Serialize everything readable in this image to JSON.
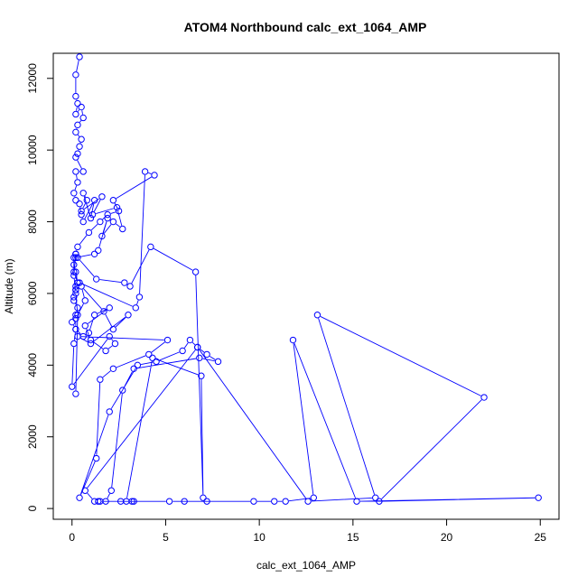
{
  "chart_data": {
    "type": "line",
    "title": "ATOM4 Northbound calc_ext_1064_AMP",
    "xlabel": "calc_ext_1064_AMP",
    "ylabel": "Altitude (m)",
    "xlim": [
      -1.0,
      26.0
    ],
    "ylim": [
      -300,
      12700
    ],
    "xticks": [
      0,
      5,
      10,
      15,
      20,
      25
    ],
    "yticks": [
      0,
      2000,
      4000,
      6000,
      8000,
      10000,
      12000
    ],
    "xtick_labels": [
      "0",
      "5",
      "10",
      "15",
      "20",
      "25"
    ],
    "ytick_labels": [
      "0",
      "2000",
      "4000",
      "6000",
      "8000",
      "10000",
      "12000"
    ],
    "grid": false,
    "series": [
      {
        "color": "#0000ff",
        "markers": "open-circle",
        "x": [
          0.4,
          0.2,
          0.2,
          0.3,
          0.2,
          0.5,
          0.6,
          0.3,
          0.2,
          0.5,
          0.4,
          0.3,
          0.2,
          0.6,
          0.2,
          0.3,
          0.1,
          0.2,
          0.4,
          0.5,
          0.6,
          1.2,
          1.0,
          0.6,
          0.8,
          0.5,
          1.6,
          1.1,
          2.4,
          2.7,
          2.2,
          1.6,
          1.9,
          1.4,
          1.2,
          0.2,
          0.1,
          0.2,
          0.3,
          0.2,
          0.1,
          0.1,
          0.3,
          0.2,
          0.0,
          0.2,
          0.6,
          0.9,
          1.2,
          2.0,
          0.7,
          1.0,
          1.8,
          2.3,
          2.0,
          0.0,
          0.1,
          0.2,
          0.2,
          0.7,
          0.5,
          1.7,
          2.2,
          3.0,
          1.0,
          0.3,
          5.1,
          4.1,
          2.2,
          1.5,
          1.3,
          0.4,
          2.0,
          3.5,
          4.5,
          5.9,
          6.3,
          6.7,
          7.2,
          7.8,
          6.8,
          3.3,
          2.7,
          2.1,
          1.8,
          1.4,
          3.2,
          3.3,
          2.6,
          1.5,
          1.2,
          0.7,
          6.7,
          12.6,
          16.2,
          13.1,
          22.0,
          16.4,
          24.9,
          15.2,
          11.8,
          12.9,
          11.4,
          10.8,
          9.7,
          6.0,
          7.2,
          5.2,
          2.9,
          4.3,
          6.9,
          7.0,
          6.6,
          4.2,
          3.1,
          2.8,
          1.3,
          0.3,
          0.2,
          0.1,
          0.1,
          0.3,
          0.2,
          0.2,
          0.4,
          3.4,
          3.6,
          3.9,
          4.4,
          2.2,
          2.5,
          1.9,
          1.5,
          0.9,
          0.3,
          0.2,
          0.1,
          0.2,
          0.3,
          0.2
        ],
        "y": [
          12600,
          12100,
          11500,
          11300,
          11000,
          11200,
          10900,
          10700,
          10500,
          10300,
          10100,
          9900,
          9800,
          9400,
          9400,
          9100,
          8800,
          8600,
          8500,
          8200,
          8000,
          8600,
          8100,
          8800,
          8600,
          8300,
          8700,
          8200,
          8400,
          7800,
          8000,
          7600,
          8100,
          7200,
          7100,
          7000,
          6800,
          6600,
          6300,
          6100,
          5900,
          5800,
          5600,
          5400,
          5200,
          5000,
          4800,
          4900,
          5400,
          5600,
          5100,
          4700,
          4400,
          4600,
          4800,
          3400,
          4600,
          5000,
          5300,
          5800,
          6200,
          5500,
          5000,
          5400,
          4600,
          4800,
          4700,
          4300,
          3900,
          3600,
          1400,
          300,
          2700,
          4000,
          4100,
          4400,
          4700,
          4500,
          4300,
          4100,
          4200,
          3900,
          3300,
          500,
          200,
          200,
          200,
          200,
          200,
          200,
          200,
          500,
          4500,
          200,
          300,
          5400,
          3100,
          200,
          300,
          200,
          4700,
          300,
          200,
          200,
          200,
          200,
          200,
          200,
          200,
          4200,
          3700,
          300,
          6600,
          7300,
          6200,
          6300,
          6400,
          7000,
          7100,
          7000,
          6600,
          6300,
          6100,
          6200,
          6300,
          5600,
          5900,
          9400,
          9300,
          8600,
          8300,
          8200,
          8000,
          7700,
          7300,
          7100,
          6500,
          6000,
          5400,
          3200
        ]
      }
    ]
  }
}
